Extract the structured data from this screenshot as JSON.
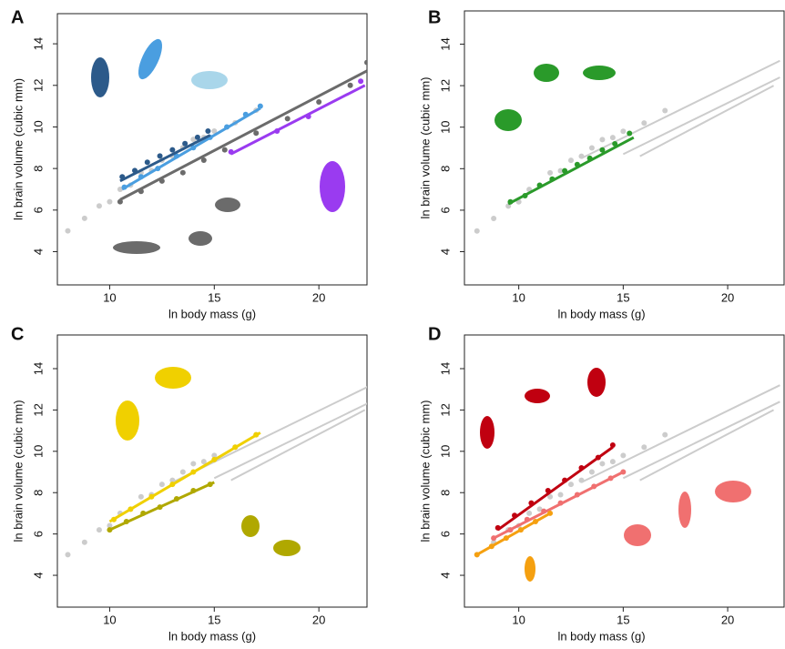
{
  "chart_data": [
    {
      "type": "scatter",
      "label": "A",
      "xlabel": "ln body mass (g)",
      "ylabel": "ln brain volume (cubic mm)",
      "xlim": [
        7.5,
        22.3
      ],
      "ylim": [
        2.4,
        15.45
      ],
      "xticks": [
        10,
        15,
        20
      ],
      "yticks": [
        4,
        6,
        8,
        10,
        12,
        14
      ],
      "series": [
        {
          "color": "#cccccc",
          "x": [
            8,
            8.8,
            9.5,
            10,
            10.5,
            11,
            11.5,
            12,
            12.5,
            13,
            13.5,
            14,
            14.5,
            15,
            16,
            17
          ],
          "values": [
            5.0,
            5.6,
            6.2,
            6.4,
            7.0,
            7.2,
            7.8,
            7.9,
            8.4,
            8.6,
            9.0,
            9.4,
            9.5,
            9.8,
            10.2,
            10.8
          ]
        },
        {
          "color": "#6b6b6b",
          "x": [
            10.5,
            11.5,
            12.5,
            13.5,
            14.5,
            15.5,
            17,
            18.5,
            20,
            21.5,
            22.3
          ],
          "values": [
            6.4,
            6.9,
            7.4,
            7.8,
            8.4,
            8.9,
            9.7,
            10.4,
            11.2,
            12.0,
            13.1
          ]
        },
        {
          "color": "#6b6b6b",
          "line": true,
          "x": [
            10.5,
            22.3
          ],
          "values": [
            6.5,
            12.7
          ]
        },
        {
          "color": "#4a9ee0",
          "x": [
            10.7,
            11.5,
            12.3,
            13.2,
            14,
            14.8,
            15.6,
            16.5,
            17.2
          ],
          "values": [
            7.1,
            7.6,
            8.0,
            8.6,
            9.0,
            9.5,
            10.0,
            10.6,
            11.0
          ]
        },
        {
          "color": "#4a9ee0",
          "line": true,
          "x": [
            10.6,
            17.2
          ],
          "values": [
            7.0,
            10.9
          ]
        },
        {
          "color": "#2c5a8a",
          "x": [
            10.6,
            11.2,
            11.8,
            12.4,
            13,
            13.6,
            14.2,
            14.7
          ],
          "values": [
            7.6,
            7.9,
            8.3,
            8.6,
            8.9,
            9.2,
            9.5,
            9.8
          ]
        },
        {
          "color": "#2c5a8a",
          "line": true,
          "x": [
            10.5,
            14.8
          ],
          "values": [
            7.4,
            9.6
          ]
        },
        {
          "color": "#9a3bf0",
          "x": [
            15.8,
            18,
            19.5,
            22
          ],
          "values": [
            8.8,
            9.8,
            10.5,
            12.2
          ]
        },
        {
          "color": "#9a3bf0",
          "line": true,
          "x": [
            15.8,
            22.2
          ],
          "values": [
            8.7,
            12.0
          ]
        }
      ]
    },
    {
      "type": "scatter",
      "label": "B",
      "xlabel": "ln body mass (g)",
      "ylabel": "ln brain volume (cubic mm)",
      "xlim": [
        7.4,
        22.7
      ],
      "ylim": [
        2.4,
        15.6
      ],
      "xticks": [
        10,
        15,
        20
      ],
      "yticks": [
        4,
        6,
        8,
        10,
        12,
        14
      ],
      "series": [
        {
          "color": "#cccccc",
          "x": [
            8,
            8.8,
            9.5,
            10,
            10.5,
            11,
            11.5,
            12,
            12.5,
            13,
            13.5,
            14,
            14.5,
            15,
            16,
            17
          ],
          "values": [
            5.0,
            5.6,
            6.2,
            6.4,
            7.0,
            7.2,
            7.8,
            7.9,
            8.4,
            8.6,
            9.0,
            9.4,
            9.5,
            9.8,
            10.2,
            10.8
          ]
        },
        {
          "color": "#cccccc",
          "line": true,
          "x": [
            13,
            22.5
          ],
          "values": [
            8.5,
            13.2
          ]
        },
        {
          "color": "#cccccc",
          "line": true,
          "x": [
            15,
            22.5
          ],
          "values": [
            8.7,
            12.4
          ]
        },
        {
          "color": "#cccccc",
          "line": true,
          "x": [
            15.8,
            22.2
          ],
          "values": [
            8.6,
            12.0
          ]
        },
        {
          "color": "#2a9a2a",
          "x": [
            9.6,
            10.3,
            11,
            11.6,
            12.2,
            12.8,
            13.4,
            14,
            14.6,
            15.3
          ],
          "values": [
            6.4,
            6.7,
            7.2,
            7.5,
            7.9,
            8.2,
            8.5,
            8.9,
            9.2,
            9.7
          ]
        },
        {
          "color": "#2a9a2a",
          "line": true,
          "x": [
            9.5,
            15.5
          ],
          "values": [
            6.3,
            9.5
          ]
        }
      ]
    },
    {
      "type": "scatter",
      "label": "C",
      "xlabel": "ln body mass (g)",
      "ylabel": "ln brain volume (cubic mm)",
      "xlim": [
        7.5,
        22.3
      ],
      "ylim": [
        2.46,
        15.63
      ],
      "xticks": [
        10,
        15,
        20
      ],
      "yticks": [
        4,
        6,
        8,
        10,
        12,
        14
      ],
      "series": [
        {
          "color": "#cccccc",
          "x": [
            8,
            8.8,
            9.5,
            10,
            10.5,
            11,
            11.5,
            12,
            12.5,
            13,
            13.5,
            14,
            14.5,
            15,
            16,
            17
          ],
          "values": [
            5.0,
            5.6,
            6.2,
            6.4,
            7.0,
            7.2,
            7.8,
            7.9,
            8.4,
            8.6,
            9.0,
            9.4,
            9.5,
            9.8,
            10.2,
            10.8
          ]
        },
        {
          "color": "#cccccc",
          "line": true,
          "x": [
            13,
            22.5
          ],
          "values": [
            8.5,
            13.2
          ]
        },
        {
          "color": "#cccccc",
          "line": true,
          "x": [
            15,
            22.5
          ],
          "values": [
            8.7,
            12.4
          ]
        },
        {
          "color": "#cccccc",
          "line": true,
          "x": [
            15.8,
            22.2
          ],
          "values": [
            8.6,
            12.0
          ]
        },
        {
          "color": "#f0d000",
          "x": [
            10.2,
            11,
            12,
            13,
            14,
            15,
            16,
            17
          ],
          "values": [
            6.7,
            7.2,
            7.8,
            8.4,
            9.0,
            9.6,
            10.2,
            10.8
          ]
        },
        {
          "color": "#f0d000",
          "line": true,
          "x": [
            10,
            17.2
          ],
          "values": [
            6.6,
            10.9
          ]
        },
        {
          "color": "#b0a800",
          "x": [
            10,
            10.8,
            11.6,
            12.4,
            13.2,
            14,
            14.8
          ],
          "values": [
            6.2,
            6.6,
            7.0,
            7.3,
            7.7,
            8.1,
            8.4
          ]
        },
        {
          "color": "#b0a800",
          "line": true,
          "x": [
            10,
            15
          ],
          "values": [
            6.2,
            8.5
          ]
        }
      ]
    },
    {
      "type": "scatter",
      "label": "D",
      "xlabel": "ln body mass (g)",
      "ylabel": "ln brain volume (cubic mm)",
      "xlim": [
        7.4,
        22.7
      ],
      "ylim": [
        2.46,
        15.63
      ],
      "xticks": [
        10,
        15,
        20
      ],
      "yticks": [
        4,
        6,
        8,
        10,
        12,
        14
      ],
      "series": [
        {
          "color": "#cccccc",
          "x": [
            8,
            8.8,
            9.5,
            10,
            10.5,
            11,
            11.5,
            12,
            12.5,
            13,
            13.5,
            14,
            14.5,
            15,
            16,
            17
          ],
          "values": [
            5.0,
            5.6,
            6.2,
            6.4,
            7.0,
            7.2,
            7.8,
            7.9,
            8.4,
            8.6,
            9.0,
            9.4,
            9.5,
            9.8,
            10.2,
            10.8
          ]
        },
        {
          "color": "#cccccc",
          "line": true,
          "x": [
            13,
            22.5
          ],
          "values": [
            8.5,
            13.2
          ]
        },
        {
          "color": "#cccccc",
          "line": true,
          "x": [
            15,
            22.5
          ],
          "values": [
            8.7,
            12.4
          ]
        },
        {
          "color": "#cccccc",
          "line": true,
          "x": [
            15.8,
            22.2
          ],
          "values": [
            8.6,
            12.0
          ]
        },
        {
          "color": "#f07070",
          "x": [
            8.8,
            9.6,
            10.4,
            11.2,
            12,
            12.8,
            13.6,
            14.4,
            15
          ],
          "values": [
            5.8,
            6.2,
            6.7,
            7.1,
            7.5,
            7.9,
            8.3,
            8.7,
            9.0
          ]
        },
        {
          "color": "#f07070",
          "line": true,
          "x": [
            8.8,
            15
          ],
          "values": [
            5.8,
            9.0
          ]
        },
        {
          "color": "#c00010",
          "x": [
            9,
            9.8,
            10.6,
            11.4,
            12.2,
            13,
            13.8,
            14.5
          ],
          "values": [
            6.3,
            6.9,
            7.5,
            8.1,
            8.6,
            9.2,
            9.7,
            10.3
          ]
        },
        {
          "color": "#c00010",
          "line": true,
          "x": [
            9,
            14.5
          ],
          "values": [
            6.2,
            10.2
          ]
        },
        {
          "color": "#f5a010",
          "x": [
            8,
            8.7,
            9.4,
            10.1,
            10.8,
            11.5
          ],
          "values": [
            5.0,
            5.4,
            5.8,
            6.2,
            6.6,
            7.0
          ]
        },
        {
          "color": "#f5a010",
          "line": true,
          "x": [
            8,
            11.5
          ],
          "values": [
            5.0,
            7.0
          ]
        }
      ]
    }
  ]
}
